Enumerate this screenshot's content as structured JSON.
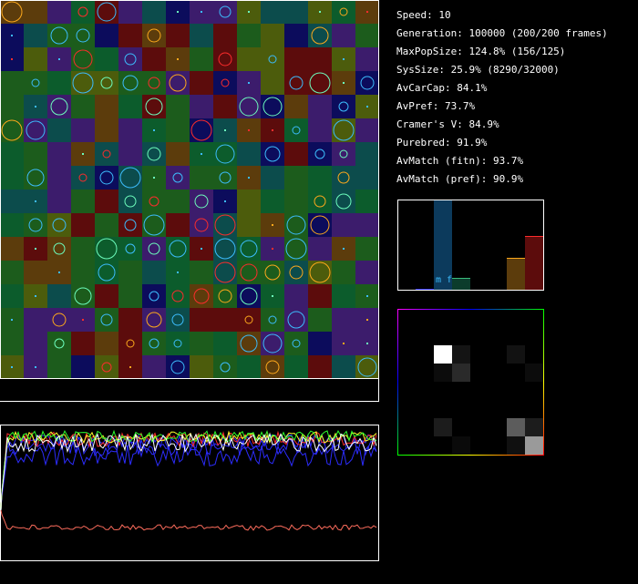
{
  "stats": [
    "Speed: 10",
    "Generation: 100000 (200/200 frames)",
    "MaxPopSize: 124.8% (156/125)",
    "SysSize: 25.9% (8290/32000)",
    "AvCarCap: 84.1%",
    "AvPref: 73.7%",
    "Cramer's V: 84.9%",
    "Purebred: 91.9%",
    "AvMatch (fitn): 93.7%",
    "AvMatch (pref): 90.9%"
  ],
  "histogram": {
    "label": "m f"
  }
}
